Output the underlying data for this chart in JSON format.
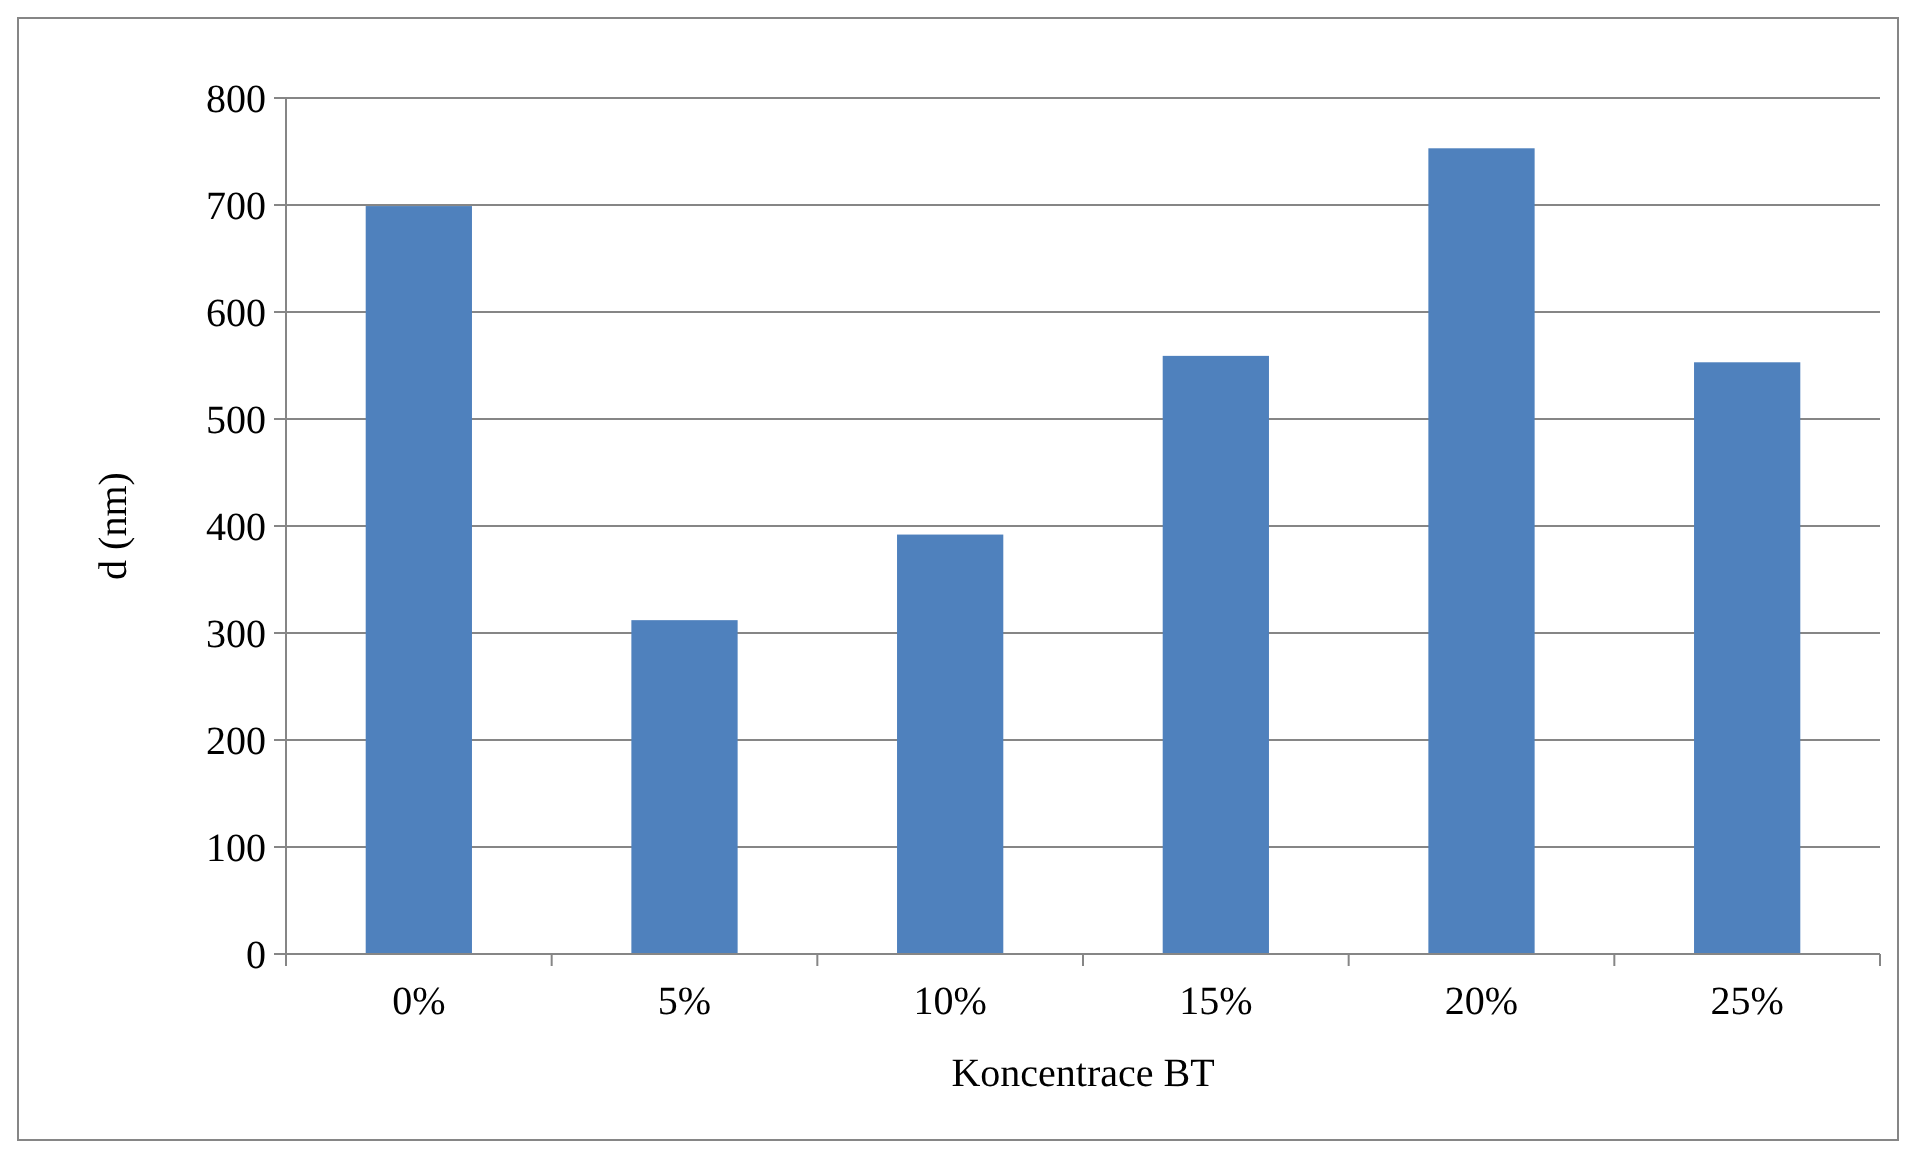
{
  "chart_data": {
    "type": "bar",
    "xlabel": "Koncentrace BT",
    "ylabel": "d (nm)",
    "categories": [
      "0%",
      "5%",
      "10%",
      "15%",
      "20%",
      "25%"
    ],
    "values": [
      699,
      312,
      392,
      559,
      753,
      553
    ],
    "color": "#4f81bd",
    "ylim": [
      0,
      800
    ],
    "yticks": [
      0,
      100,
      200,
      300,
      400,
      500,
      600,
      700,
      800
    ],
    "grid": "y"
  }
}
